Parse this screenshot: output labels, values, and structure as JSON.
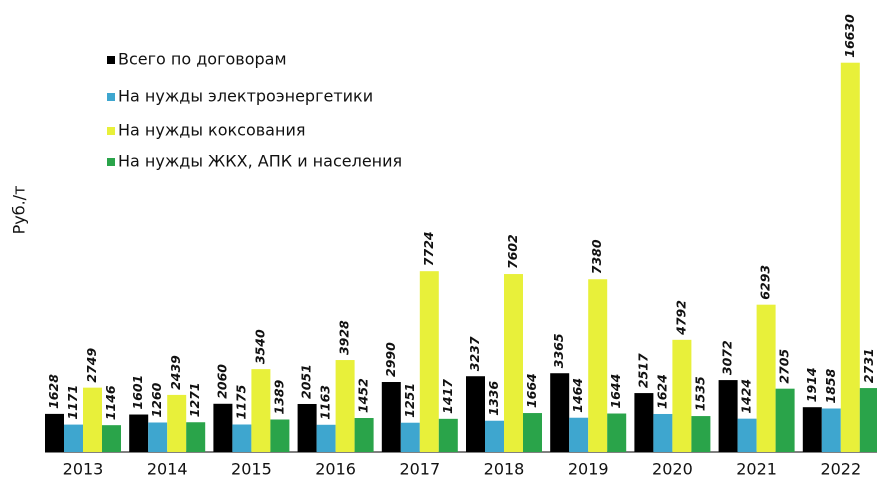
{
  "chart_data": {
    "type": "bar",
    "y_label": "Руб./т",
    "categories": [
      "2013",
      "2014",
      "2015",
      "2016",
      "2017",
      "2018",
      "2019",
      "2020",
      "2021",
      "2022"
    ],
    "series": [
      {
        "name": "Всего по договорам",
        "color": "#000000",
        "values": [
          1628,
          1601,
          2060,
          2051,
          2990,
          3237,
          3365,
          2517,
          3072,
          1914
        ]
      },
      {
        "name": "На нужды электроэнергетики",
        "color": "#3ea6cf",
        "values": [
          1171,
          1260,
          1175,
          1163,
          1251,
          1336,
          1464,
          1624,
          1424,
          1858
        ]
      },
      {
        "name": "На нужды коксования",
        "color": "#e8f03a",
        "values": [
          2749,
          2439,
          3540,
          3928,
          7724,
          7602,
          7380,
          4792,
          6293,
          16630
        ]
      },
      {
        "name": "На нужды ЖКХ, АПК и населения",
        "color": "#2aa44a",
        "values": [
          1146,
          1271,
          1389,
          1452,
          1417,
          1664,
          1644,
          1535,
          2705,
          2731
        ]
      }
    ],
    "ylim": [
      0,
      17600
    ]
  }
}
